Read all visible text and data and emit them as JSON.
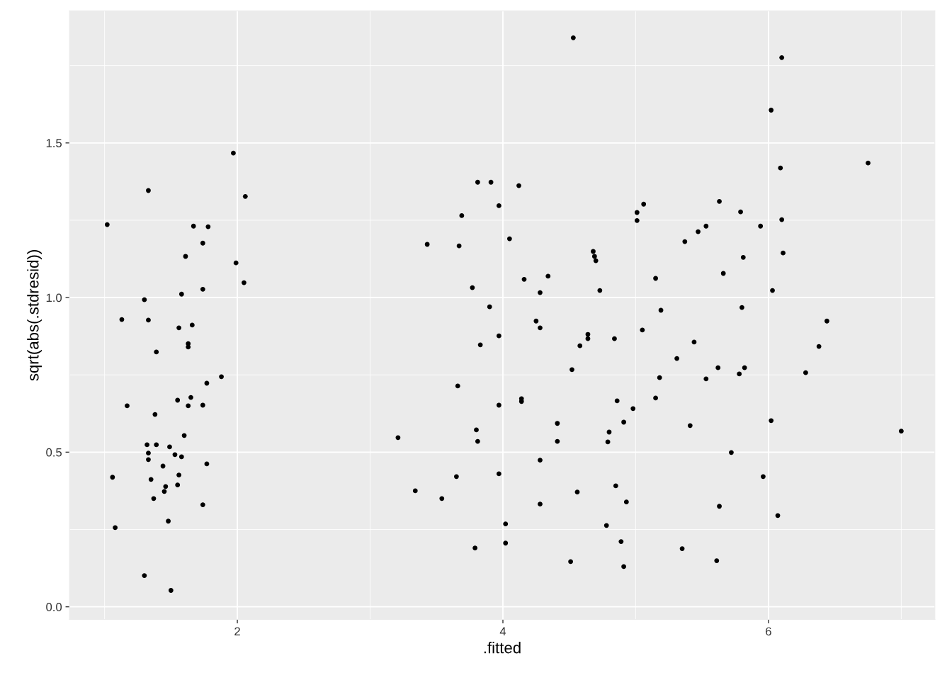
{
  "chart_data": {
    "type": "scatter",
    "xlabel": ".fitted",
    "ylabel": "sqrt(abs(.stdresid))",
    "xlim": [
      0.736,
      7.253
    ],
    "ylim": [
      -0.041,
      1.927
    ],
    "xticks": [
      2,
      4,
      6
    ],
    "yticks": [
      {
        "value": 0,
        "label": "0.0"
      },
      {
        "value": 0.5,
        "label": "0.5"
      },
      {
        "value": 1,
        "label": "1.0"
      },
      {
        "value": 1.5,
        "label": "1.5"
      }
    ],
    "grid": true,
    "marker": "circle",
    "series": [
      {
        "color": "#000000",
        "x": [
          1.02,
          1.33,
          1.97,
          2.06,
          1.67,
          1.78,
          1.74,
          1.61,
          1.99,
          2.05,
          1.74,
          1.58,
          1.3,
          1.13,
          1.33,
          1.56,
          1.66,
          1.63,
          1.63,
          1.39,
          1.88,
          1.77,
          1.17,
          1.55,
          1.65,
          1.63,
          1.74,
          1.38,
          1.6,
          1.32,
          1.39,
          1.49,
          1.33,
          1.53,
          1.58,
          1.33,
          1.44,
          1.77,
          1.06,
          1.35,
          1.56,
          1.46,
          1.55,
          1.45,
          1.37,
          1.74,
          1.48,
          1.08,
          1.3,
          1.5,
          4.53,
          6.1,
          6.02,
          6.75,
          6.09,
          3.81,
          3.91,
          4.12,
          3.43,
          3.69,
          3.97,
          5.06,
          5.01,
          5.01,
          5.63,
          5.79,
          6.1,
          5.94,
          5.53,
          5.47,
          5.37,
          4.05,
          3.67,
          4.68,
          4.69,
          4.7,
          5.81,
          6.11,
          5.66,
          4.34,
          4.16,
          5.15,
          3.77,
          4.28,
          4.73,
          6.03,
          3.9,
          5.19,
          5.8,
          4.25,
          4.28,
          5.05,
          6.44,
          3.97,
          4.64,
          4.64,
          4.84,
          3.83,
          4.58,
          5.44,
          6.38,
          5.31,
          4.52,
          5.62,
          5.82,
          5.78,
          6.28,
          5.53,
          5.18,
          3.66,
          5.15,
          4.14,
          4.14,
          4.86,
          3.97,
          4.98,
          6.02,
          4.91,
          4.41,
          5.41,
          7.0,
          3.8,
          4.8,
          3.21,
          3.81,
          4.41,
          4.79,
          5.72,
          4.28,
          3.65,
          3.97,
          5.96,
          3.34,
          4.85,
          4.56,
          3.54,
          4.93,
          4.28,
          5.63,
          6.07,
          4.02,
          4.78,
          4.02,
          4.89,
          3.79,
          5.35,
          4.51,
          5.61,
          4.91
        ],
        "values": [
          1.236,
          1.346,
          1.467,
          1.327,
          1.231,
          1.229,
          1.176,
          1.133,
          1.112,
          1.048,
          1.027,
          1.011,
          0.993,
          0.929,
          0.927,
          0.902,
          0.911,
          0.851,
          0.84,
          0.824,
          0.744,
          0.723,
          0.65,
          0.668,
          0.677,
          0.65,
          0.652,
          0.622,
          0.554,
          0.524,
          0.524,
          0.517,
          0.497,
          0.492,
          0.485,
          0.476,
          0.455,
          0.462,
          0.419,
          0.412,
          0.426,
          0.389,
          0.394,
          0.373,
          0.35,
          0.33,
          0.277,
          0.256,
          0.101,
          0.053,
          1.84,
          1.776,
          1.606,
          1.435,
          1.419,
          1.373,
          1.373,
          1.362,
          1.172,
          1.265,
          1.297,
          1.302,
          1.275,
          1.249,
          1.311,
          1.277,
          1.252,
          1.231,
          1.231,
          1.213,
          1.181,
          1.19,
          1.167,
          1.149,
          1.133,
          1.119,
          1.13,
          1.144,
          1.078,
          1.069,
          1.059,
          1.062,
          1.032,
          1.016,
          1.023,
          1.023,
          0.97,
          0.959,
          0.968,
          0.924,
          0.902,
          0.895,
          0.924,
          0.876,
          0.881,
          0.867,
          0.867,
          0.847,
          0.844,
          0.856,
          0.842,
          0.803,
          0.767,
          0.773,
          0.773,
          0.753,
          0.757,
          0.737,
          0.741,
          0.714,
          0.675,
          0.673,
          0.664,
          0.666,
          0.652,
          0.641,
          0.602,
          0.597,
          0.593,
          0.586,
          0.568,
          0.572,
          0.565,
          0.547,
          0.535,
          0.535,
          0.533,
          0.499,
          0.474,
          0.421,
          0.43,
          0.421,
          0.375,
          0.391,
          0.371,
          0.35,
          0.339,
          0.332,
          0.325,
          0.295,
          0.268,
          0.263,
          0.206,
          0.211,
          0.19,
          0.188,
          0.146,
          0.149,
          0.13
        ]
      }
    ]
  }
}
